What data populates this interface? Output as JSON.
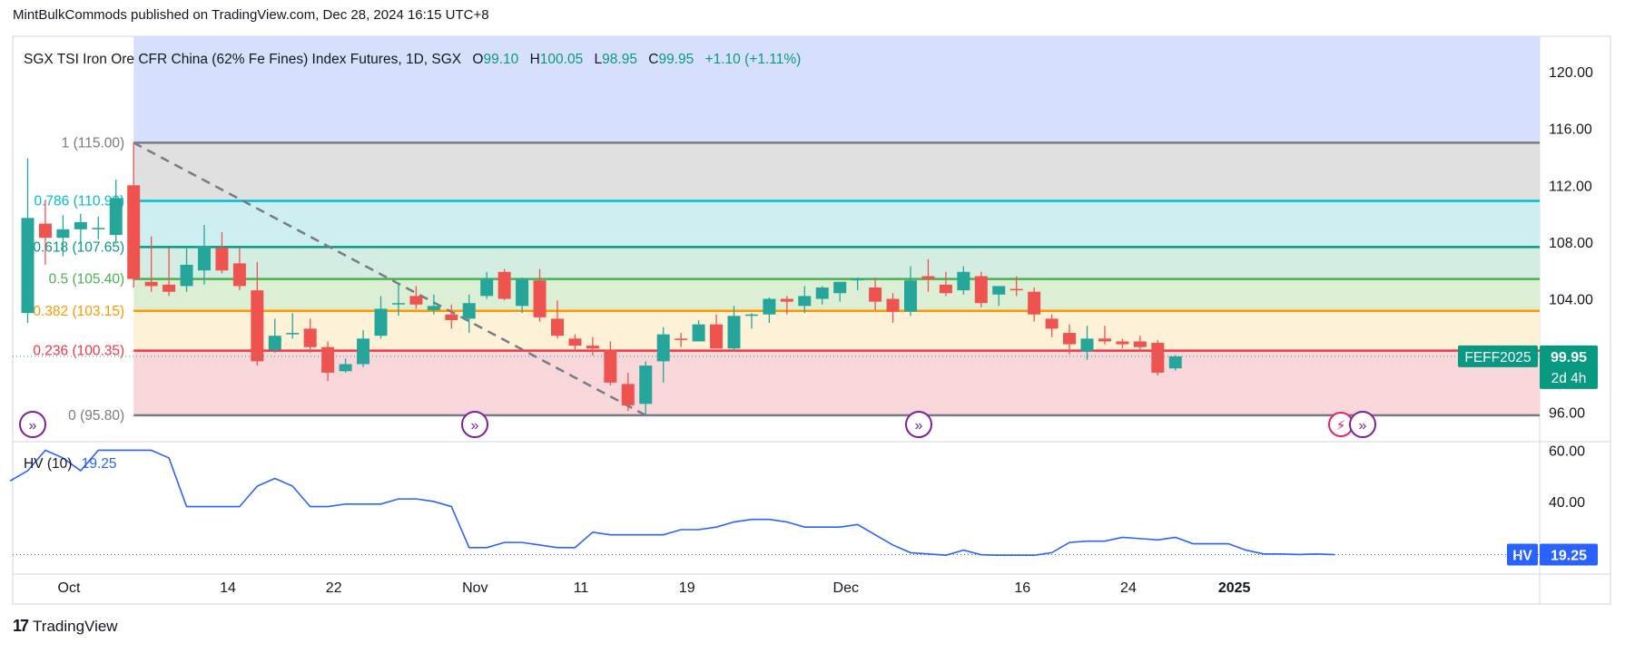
{
  "publisher_line": "MintBulkCommods published on TradingView.com, Dec 28, 2024 16:15 UTC+8",
  "footer_brand": "TradingView",
  "colors": {
    "up": "#26a69a",
    "down": "#ef5350",
    "hv": "#2962ff",
    "axis_text": "#131722"
  },
  "chart_data": [
    {
      "type": "candlestick",
      "title": "SGX TSI Iron Ore CFR China (62% Fe Fines) Index Futures, 1D, SGX",
      "ohlc_header": {
        "o_label": "O",
        "o": "99.10",
        "h_label": "H",
        "h": "100.05",
        "l_label": "L",
        "l": "98.95",
        "c_label": "C",
        "c": "99.95",
        "change": "+1.10 (+1.11%)"
      },
      "ylim": [
        94.0,
        122.5
      ],
      "y_ticks": [
        "120.00",
        "116.00",
        "112.00",
        "108.00",
        "104.00",
        "96.00"
      ],
      "x_ticks": [
        {
          "label": "Oct",
          "i": 1,
          "bold": false
        },
        {
          "label": "14",
          "i": 10,
          "bold": false
        },
        {
          "label": "22",
          "i": 16,
          "bold": false
        },
        {
          "label": "Nov",
          "i": 24,
          "bold": false
        },
        {
          "label": "11",
          "i": 30,
          "bold": false
        },
        {
          "label": "19",
          "i": 36,
          "bold": false
        },
        {
          "label": "Dec",
          "i": 45,
          "bold": false
        },
        {
          "label": "16",
          "i": 55,
          "bold": false
        },
        {
          "label": "24",
          "i": 61,
          "bold": false
        },
        {
          "label": "2025",
          "i": 67,
          "bold": true
        }
      ],
      "candles": [
        {
          "o": 103.0,
          "h": 113.9,
          "l": 102.3,
          "c": 109.7
        },
        {
          "o": 109.3,
          "h": 111.0,
          "l": 106.4,
          "c": 108.3
        },
        {
          "o": 108.3,
          "h": 109.9,
          "l": 107.0,
          "c": 108.9
        },
        {
          "o": 108.9,
          "h": 110.0,
          "l": 108.0,
          "c": 109.4
        },
        {
          "o": 108.9,
          "h": 109.8,
          "l": 108.2,
          "c": 109.0
        },
        {
          "o": 108.5,
          "h": 112.4,
          "l": 107.9,
          "c": 111.1
        },
        {
          "o": 112.0,
          "h": 115.0,
          "l": 104.8,
          "c": 105.4
        },
        {
          "o": 105.2,
          "h": 108.4,
          "l": 104.5,
          "c": 104.9
        },
        {
          "o": 105.0,
          "h": 107.6,
          "l": 104.2,
          "c": 104.5
        },
        {
          "o": 104.9,
          "h": 107.6,
          "l": 104.5,
          "c": 106.4
        },
        {
          "o": 106.0,
          "h": 109.2,
          "l": 105.0,
          "c": 107.7
        },
        {
          "o": 107.6,
          "h": 108.7,
          "l": 105.8,
          "c": 106.0
        },
        {
          "o": 106.5,
          "h": 107.6,
          "l": 104.6,
          "c": 104.9
        },
        {
          "o": 104.6,
          "h": 106.6,
          "l": 99.3,
          "c": 99.6
        },
        {
          "o": 100.4,
          "h": 102.6,
          "l": 100.2,
          "c": 101.4
        },
        {
          "o": 101.5,
          "h": 103.0,
          "l": 101.2,
          "c": 101.6
        },
        {
          "o": 101.9,
          "h": 102.6,
          "l": 100.2,
          "c": 100.6
        },
        {
          "o": 100.6,
          "h": 101.0,
          "l": 98.2,
          "c": 98.8
        },
        {
          "o": 98.9,
          "h": 99.8,
          "l": 98.8,
          "c": 99.4
        },
        {
          "o": 99.4,
          "h": 101.8,
          "l": 99.2,
          "c": 101.2
        },
        {
          "o": 101.4,
          "h": 104.2,
          "l": 101.2,
          "c": 103.3
        },
        {
          "o": 103.7,
          "h": 105.1,
          "l": 102.8,
          "c": 103.7
        },
        {
          "o": 104.2,
          "h": 104.9,
          "l": 103.3,
          "c": 103.6
        },
        {
          "o": 103.2,
          "h": 104.3,
          "l": 102.9,
          "c": 103.5
        },
        {
          "o": 102.9,
          "h": 103.6,
          "l": 101.9,
          "c": 102.5
        },
        {
          "o": 102.6,
          "h": 104.3,
          "l": 101.6,
          "c": 103.7
        },
        {
          "o": 104.2,
          "h": 105.9,
          "l": 104.0,
          "c": 105.4
        },
        {
          "o": 105.9,
          "h": 106.1,
          "l": 103.9,
          "c": 104.0
        },
        {
          "o": 103.5,
          "h": 105.5,
          "l": 103.0,
          "c": 105.4
        },
        {
          "o": 105.3,
          "h": 106.1,
          "l": 102.4,
          "c": 102.7
        },
        {
          "o": 102.6,
          "h": 103.9,
          "l": 101.2,
          "c": 101.4
        },
        {
          "o": 101.2,
          "h": 101.5,
          "l": 100.3,
          "c": 100.7
        },
        {
          "o": 100.7,
          "h": 101.3,
          "l": 100.0,
          "c": 100.5
        },
        {
          "o": 100.4,
          "h": 101.0,
          "l": 97.9,
          "c": 98.1
        },
        {
          "o": 98.0,
          "h": 98.8,
          "l": 96.1,
          "c": 96.5
        },
        {
          "o": 96.6,
          "h": 99.6,
          "l": 95.8,
          "c": 99.3
        },
        {
          "o": 99.6,
          "h": 102.0,
          "l": 98.1,
          "c": 101.5
        },
        {
          "o": 101.2,
          "h": 101.6,
          "l": 100.6,
          "c": 101.1
        },
        {
          "o": 101.0,
          "h": 102.5,
          "l": 101.0,
          "c": 102.2
        },
        {
          "o": 102.2,
          "h": 102.9,
          "l": 100.5,
          "c": 100.5
        },
        {
          "o": 100.5,
          "h": 103.5,
          "l": 100.3,
          "c": 102.8
        },
        {
          "o": 102.8,
          "h": 103.0,
          "l": 101.9,
          "c": 102.9
        },
        {
          "o": 102.9,
          "h": 104.1,
          "l": 102.3,
          "c": 104.0
        },
        {
          "o": 104.0,
          "h": 104.2,
          "l": 102.9,
          "c": 103.8
        },
        {
          "o": 103.5,
          "h": 104.9,
          "l": 103.0,
          "c": 104.2
        },
        {
          "o": 104.0,
          "h": 104.9,
          "l": 103.6,
          "c": 104.8
        },
        {
          "o": 104.4,
          "h": 105.1,
          "l": 103.8,
          "c": 105.2
        },
        {
          "o": 105.3,
          "h": 105.5,
          "l": 104.6,
          "c": 105.4
        },
        {
          "o": 104.8,
          "h": 105.5,
          "l": 103.2,
          "c": 103.8
        },
        {
          "o": 104.0,
          "h": 104.4,
          "l": 102.3,
          "c": 103.1
        },
        {
          "o": 103.1,
          "h": 106.3,
          "l": 102.8,
          "c": 105.3
        },
        {
          "o": 105.6,
          "h": 106.8,
          "l": 104.5,
          "c": 105.4
        },
        {
          "o": 105.0,
          "h": 105.9,
          "l": 104.2,
          "c": 104.4
        },
        {
          "o": 104.6,
          "h": 106.3,
          "l": 104.3,
          "c": 105.9
        },
        {
          "o": 105.6,
          "h": 105.9,
          "l": 103.4,
          "c": 103.7
        },
        {
          "o": 104.3,
          "h": 104.9,
          "l": 103.5,
          "c": 104.9
        },
        {
          "o": 104.7,
          "h": 105.6,
          "l": 104.2,
          "c": 104.6
        },
        {
          "o": 104.5,
          "h": 104.8,
          "l": 102.4,
          "c": 102.9
        },
        {
          "o": 102.6,
          "h": 102.9,
          "l": 101.3,
          "c": 101.9
        },
        {
          "o": 101.6,
          "h": 102.2,
          "l": 100.1,
          "c": 100.8
        },
        {
          "o": 100.3,
          "h": 102.1,
          "l": 99.7,
          "c": 101.2
        },
        {
          "o": 101.2,
          "h": 102.1,
          "l": 100.8,
          "c": 101.0
        },
        {
          "o": 101.0,
          "h": 101.2,
          "l": 100.5,
          "c": 100.8
        },
        {
          "o": 101.0,
          "h": 101.4,
          "l": 100.3,
          "c": 100.6
        },
        {
          "o": 100.9,
          "h": 101.1,
          "l": 98.6,
          "c": 98.8
        },
        {
          "o": 99.1,
          "h": 100.05,
          "l": 98.95,
          "c": 99.95
        }
      ],
      "fib_levels": [
        {
          "ratio": "1",
          "price": "115.00",
          "value": 115.0,
          "color": "#787b86",
          "fill": "#e0e0e0"
        },
        {
          "ratio": "0.786",
          "price": "110.90",
          "value": 110.9,
          "color": "#00bcd4",
          "fill": "#cdeff2"
        },
        {
          "ratio": "0.618",
          "price": "107.65",
          "value": 107.65,
          "color": "#089981",
          "fill": "#d4ede2"
        },
        {
          "ratio": "0.5",
          "price": "105.40",
          "value": 105.4,
          "color": "#4caf50",
          "fill": "#dcefd5"
        },
        {
          "ratio": "0.382",
          "price": "103.15",
          "value": 103.15,
          "color": "#ff9800",
          "fill": "#fdf2d7"
        },
        {
          "ratio": "0.236",
          "price": "100.35",
          "value": 100.35,
          "color": "#f23645",
          "fill": "#f8d7da"
        },
        {
          "ratio": "0",
          "price": "95.80",
          "value": 95.8,
          "color": "#787b86",
          "fill": ""
        }
      ],
      "trend_line": {
        "from": {
          "i": 6,
          "price": 115.0
        },
        "to": {
          "i": 35,
          "price": 95.8
        }
      },
      "price_label": {
        "ticker": "FEFF2025",
        "value": "99.95",
        "countdown": "2d 4h",
        "value_num": 99.95
      }
    },
    {
      "type": "line",
      "indicator": "HV (10)",
      "last_value": "19.25",
      "axis_label": "HV",
      "ylim": [
        12,
        63
      ],
      "y_ticks": [
        "60.00",
        "40.00"
      ],
      "values": [
        48,
        52,
        60,
        57,
        52,
        60,
        60,
        60,
        60,
        57,
        38,
        38,
        38,
        38,
        46,
        49,
        46,
        38,
        38,
        39,
        39,
        39,
        41,
        41,
        40,
        38,
        22,
        22,
        24,
        24,
        23,
        22,
        22,
        28,
        27,
        27,
        27,
        27,
        29,
        29,
        30,
        32,
        33,
        33,
        32,
        30,
        30,
        30,
        31,
        27,
        23,
        20,
        19.5,
        19,
        21,
        19.2,
        19,
        19,
        19,
        20,
        24,
        24.5,
        24.5,
        26,
        25.5,
        25,
        26,
        23.5,
        23.5,
        23.5,
        21,
        19.5,
        19.5,
        19.3,
        19.5,
        19.25
      ]
    }
  ]
}
